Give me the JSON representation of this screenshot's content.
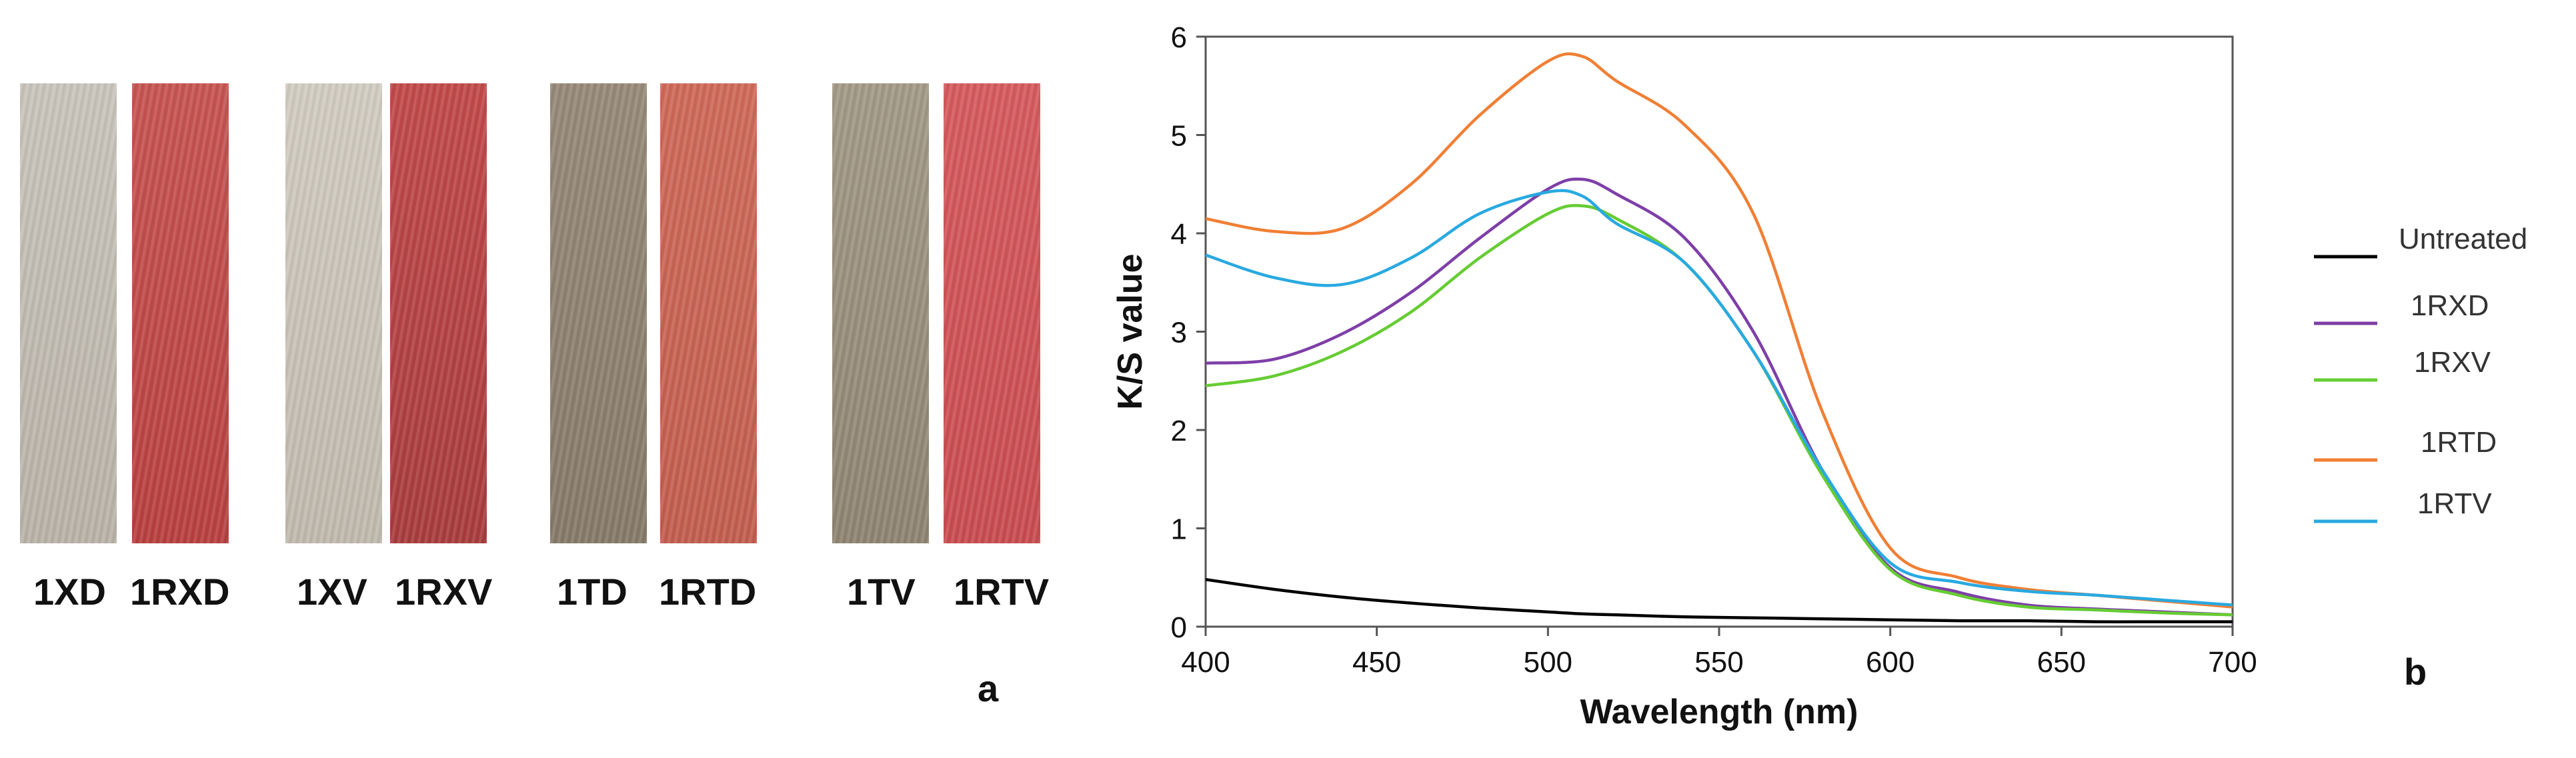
{
  "panel_a": {
    "samples": [
      {
        "label": "1XD",
        "color_top": "#c9c5bc",
        "color_bottom": "#b9b3a8"
      },
      {
        "label": "1RXD",
        "color_top": "#c75552",
        "color_bottom": "#b8403f"
      },
      {
        "label": "1XV",
        "color_top": "#d2cdc2",
        "color_bottom": "#c0baae"
      },
      {
        "label": "1RXV",
        "color_top": "#c24a4a",
        "color_bottom": "#a83c3d"
      },
      {
        "label": "1TD",
        "color_top": "#978a78",
        "color_bottom": "#867a68"
      },
      {
        "label": "1RTD",
        "color_top": "#cf6a5a",
        "color_bottom": "#c25e4f"
      },
      {
        "label": "1TV",
        "color_top": "#a39a88",
        "color_bottom": "#8f8472"
      },
      {
        "label": "1RTV",
        "color_top": "#d65b5e",
        "color_bottom": "#c94c50"
      }
    ],
    "panel_label": "a"
  },
  "panel_b": {
    "panel_label": "b"
  },
  "chart_data": {
    "type": "line",
    "title": "",
    "xlabel": "Wavelength (nm)",
    "ylabel": "K/S value",
    "xlim": [
      400,
      700
    ],
    "ylim": [
      0,
      6
    ],
    "xticks": [
      400,
      450,
      500,
      550,
      600,
      650,
      700
    ],
    "yticks": [
      0,
      1,
      2,
      3,
      4,
      5,
      6
    ],
    "grid": false,
    "legend_position": "right",
    "x": [
      400,
      420,
      440,
      460,
      480,
      500,
      510,
      520,
      540,
      560,
      580,
      600,
      620,
      640,
      660,
      680,
      700
    ],
    "series": [
      {
        "name": "Untreated",
        "color": "#000000",
        "values": [
          0.48,
          0.38,
          0.3,
          0.24,
          0.19,
          0.15,
          0.13,
          0.12,
          0.1,
          0.09,
          0.08,
          0.07,
          0.06,
          0.06,
          0.05,
          0.05,
          0.05
        ]
      },
      {
        "name": "1RXD",
        "color": "#7e3fa8",
        "values": [
          2.68,
          2.72,
          2.98,
          3.4,
          3.95,
          4.45,
          4.55,
          4.4,
          3.95,
          3.0,
          1.6,
          0.6,
          0.35,
          0.22,
          0.18,
          0.15,
          0.12
        ]
      },
      {
        "name": "1RXV",
        "color": "#66cc33",
        "values": [
          2.45,
          2.55,
          2.8,
          3.2,
          3.75,
          4.2,
          4.28,
          4.15,
          3.7,
          2.8,
          1.55,
          0.58,
          0.32,
          0.2,
          0.17,
          0.14,
          0.12
        ]
      },
      {
        "name": "1RTD",
        "color": "#f07f35",
        "values": [
          4.15,
          4.02,
          4.05,
          4.5,
          5.2,
          5.75,
          5.8,
          5.55,
          5.1,
          4.2,
          2.2,
          0.8,
          0.5,
          0.38,
          0.32,
          0.26,
          0.2
        ]
      },
      {
        "name": "1RTV",
        "color": "#29a9e0",
        "values": [
          3.78,
          3.55,
          3.48,
          3.75,
          4.2,
          4.42,
          4.38,
          4.1,
          3.7,
          2.8,
          1.6,
          0.65,
          0.45,
          0.36,
          0.32,
          0.27,
          0.22
        ]
      }
    ]
  }
}
